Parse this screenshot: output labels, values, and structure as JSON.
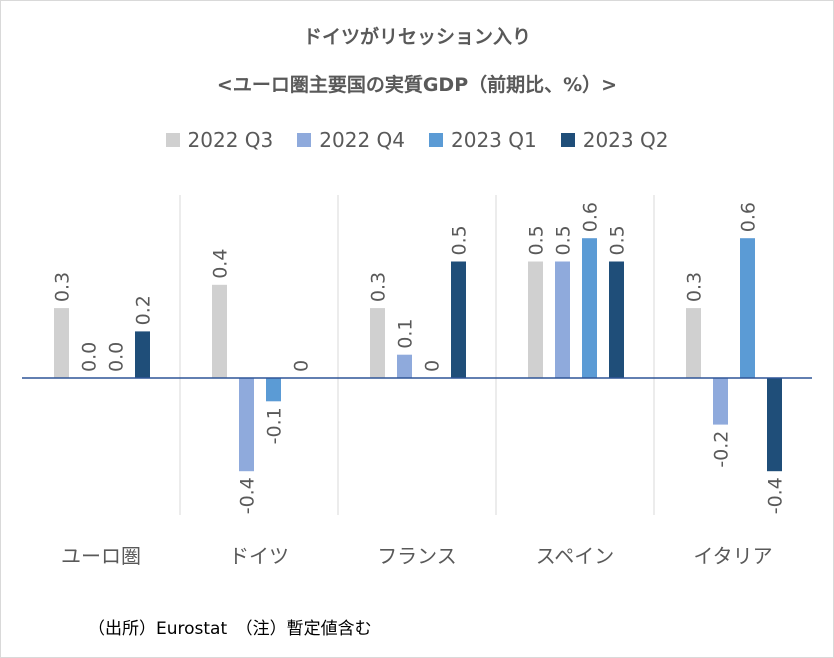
{
  "chart_data": {
    "type": "bar",
    "title": "ドイツがリセッション入り",
    "subtitle": "<ユーロ圏主要国の実質GDP（前期比、%）>",
    "categories": [
      "ユーロ圏",
      "ドイツ",
      "フランス",
      "スペイン",
      "イタリア"
    ],
    "series": [
      {
        "name": "2022 Q3",
        "color": "#d0d0d0",
        "values": [
          0.3,
          0.4,
          0.3,
          0.5,
          0.3
        ],
        "labels": [
          "0.3",
          "0.4",
          "0.3",
          "0.5",
          "0.3"
        ]
      },
      {
        "name": "2022 Q4",
        "color": "#8faadc",
        "values": [
          0.0,
          -0.4,
          0.1,
          0.5,
          -0.2
        ],
        "labels": [
          "0.0",
          "-0.4",
          "0.1",
          "0.5",
          "-0.2"
        ]
      },
      {
        "name": "2023 Q1",
        "color": "#5b9bd5",
        "values": [
          0.0,
          -0.1,
          0,
          0.6,
          0.6
        ],
        "labels": [
          "0.0",
          "-0.1",
          "0",
          "0.6",
          "0.6"
        ]
      },
      {
        "name": "2023 Q2",
        "color": "#1f4e79",
        "values": [
          0.2,
          0,
          0.5,
          0.5,
          -0.4
        ],
        "labels": [
          "0.2",
          "0",
          "0.5",
          "0.5",
          "-0.4"
        ]
      }
    ],
    "xlabel": "",
    "ylabel": "",
    "ylim": [
      -0.6,
      0.8
    ],
    "grid": false,
    "legend": "top"
  },
  "note": "（出所）Eurostat　（注）暫定値含む"
}
